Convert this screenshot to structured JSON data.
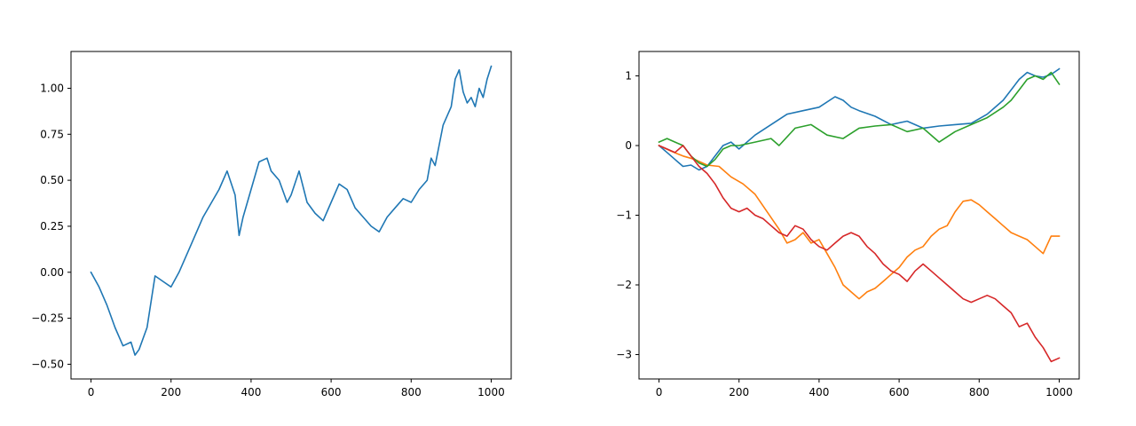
{
  "chart_data": [
    {
      "type": "line",
      "xlim": [
        -50,
        1050
      ],
      "ylim": [
        -0.58,
        1.2
      ],
      "xticks": [
        0,
        200,
        400,
        600,
        800,
        1000
      ],
      "xtick_labels": [
        "0",
        "200",
        "400",
        "600",
        "800",
        "1000"
      ],
      "yticks": [
        -0.5,
        -0.25,
        0.0,
        0.25,
        0.5,
        0.75,
        1.0
      ],
      "ytick_labels": [
        "−0.50",
        "−0.25",
        "0.00",
        "0.25",
        "0.50",
        "0.75",
        "1.00"
      ],
      "grid": false,
      "series": [
        {
          "color": "#1f77b4",
          "x": [
            0,
            20,
            40,
            60,
            80,
            100,
            110,
            120,
            140,
            160,
            180,
            200,
            220,
            250,
            280,
            320,
            340,
            360,
            370,
            380,
            400,
            420,
            440,
            450,
            470,
            490,
            500,
            520,
            540,
            560,
            580,
            600,
            620,
            640,
            660,
            680,
            700,
            720,
            740,
            760,
            780,
            800,
            820,
            840,
            850,
            860,
            880,
            900,
            910,
            920,
            930,
            940,
            950,
            960,
            970,
            980,
            990,
            1000
          ],
          "y": [
            0.0,
            -0.08,
            -0.18,
            -0.3,
            -0.4,
            -0.38,
            -0.45,
            -0.42,
            -0.3,
            -0.02,
            -0.05,
            -0.08,
            0.0,
            0.15,
            0.3,
            0.45,
            0.55,
            0.42,
            0.2,
            0.3,
            0.45,
            0.6,
            0.62,
            0.55,
            0.5,
            0.38,
            0.42,
            0.55,
            0.38,
            0.32,
            0.28,
            0.38,
            0.48,
            0.45,
            0.35,
            0.3,
            0.25,
            0.22,
            0.3,
            0.35,
            0.4,
            0.38,
            0.45,
            0.5,
            0.62,
            0.58,
            0.8,
            0.9,
            1.05,
            1.1,
            0.98,
            0.92,
            0.95,
            0.9,
            1.0,
            0.95,
            1.05,
            1.12
          ]
        }
      ]
    },
    {
      "type": "line",
      "xlim": [
        -50,
        1050
      ],
      "ylim": [
        -3.35,
        1.35
      ],
      "xticks": [
        0,
        200,
        400,
        600,
        800,
        1000
      ],
      "xtick_labels": [
        "0",
        "200",
        "400",
        "600",
        "800",
        "1000"
      ],
      "yticks": [
        -3,
        -2,
        -1,
        0,
        1
      ],
      "ytick_labels": [
        "−3",
        "−2",
        "−1",
        "0",
        "1"
      ],
      "grid": false,
      "series": [
        {
          "color": "#1f77b4",
          "x": [
            0,
            20,
            40,
            60,
            80,
            100,
            120,
            140,
            160,
            180,
            200,
            240,
            280,
            320,
            360,
            400,
            440,
            460,
            480,
            500,
            540,
            580,
            620,
            660,
            700,
            740,
            780,
            820,
            860,
            900,
            920,
            940,
            960,
            980,
            1000
          ],
          "y": [
            0.0,
            -0.1,
            -0.2,
            -0.3,
            -0.28,
            -0.35,
            -0.3,
            -0.15,
            0.0,
            0.05,
            -0.05,
            0.15,
            0.3,
            0.45,
            0.5,
            0.55,
            0.7,
            0.65,
            0.55,
            0.5,
            0.42,
            0.3,
            0.35,
            0.25,
            0.28,
            0.3,
            0.32,
            0.45,
            0.65,
            0.95,
            1.05,
            1.0,
            0.98,
            1.02,
            1.1
          ]
        },
        {
          "color": "#ff7f0e",
          "x": [
            0,
            30,
            60,
            90,
            120,
            150,
            180,
            210,
            240,
            270,
            300,
            320,
            340,
            360,
            380,
            400,
            420,
            440,
            460,
            480,
            500,
            520,
            540,
            560,
            580,
            600,
            620,
            640,
            660,
            680,
            700,
            720,
            740,
            760,
            780,
            800,
            820,
            840,
            860,
            880,
            900,
            920,
            940,
            960,
            980,
            1000
          ],
          "y": [
            0.0,
            -0.08,
            -0.15,
            -0.2,
            -0.28,
            -0.3,
            -0.45,
            -0.55,
            -0.7,
            -0.95,
            -1.2,
            -1.4,
            -1.35,
            -1.25,
            -1.4,
            -1.35,
            -1.55,
            -1.75,
            -2.0,
            -2.1,
            -2.2,
            -2.1,
            -2.05,
            -1.95,
            -1.85,
            -1.75,
            -1.6,
            -1.5,
            -1.45,
            -1.3,
            -1.2,
            -1.15,
            -0.95,
            -0.8,
            -0.78,
            -0.85,
            -0.95,
            -1.05,
            -1.15,
            -1.25,
            -1.3,
            -1.35,
            -1.45,
            -1.55,
            -1.3,
            -1.3
          ]
        },
        {
          "color": "#2ca02c",
          "x": [
            0,
            20,
            40,
            60,
            80,
            100,
            120,
            140,
            160,
            180,
            200,
            240,
            280,
            300,
            340,
            380,
            420,
            460,
            500,
            540,
            580,
            620,
            660,
            700,
            740,
            780,
            820,
            860,
            880,
            900,
            920,
            940,
            960,
            980,
            1000
          ],
          "y": [
            0.05,
            0.1,
            0.05,
            0.0,
            -0.15,
            -0.25,
            -0.3,
            -0.2,
            -0.05,
            0.0,
            0.0,
            0.05,
            0.1,
            0.0,
            0.25,
            0.3,
            0.15,
            0.1,
            0.25,
            0.28,
            0.3,
            0.2,
            0.25,
            0.05,
            0.2,
            0.3,
            0.4,
            0.55,
            0.65,
            0.8,
            0.95,
            1.0,
            0.95,
            1.05,
            0.88
          ]
        },
        {
          "color": "#d62728",
          "x": [
            0,
            20,
            40,
            60,
            80,
            100,
            120,
            140,
            160,
            180,
            200,
            220,
            240,
            260,
            280,
            300,
            320,
            340,
            360,
            380,
            400,
            420,
            440,
            460,
            480,
            500,
            520,
            540,
            560,
            580,
            600,
            620,
            640,
            660,
            680,
            700,
            720,
            740,
            760,
            780,
            800,
            820,
            840,
            860,
            880,
            900,
            920,
            940,
            960,
            980,
            1000
          ],
          "y": [
            0.0,
            -0.05,
            -0.1,
            0.0,
            -0.15,
            -0.3,
            -0.4,
            -0.55,
            -0.75,
            -0.9,
            -0.95,
            -0.9,
            -1.0,
            -1.05,
            -1.15,
            -1.25,
            -1.3,
            -1.15,
            -1.2,
            -1.35,
            -1.45,
            -1.5,
            -1.4,
            -1.3,
            -1.25,
            -1.3,
            -1.45,
            -1.55,
            -1.7,
            -1.8,
            -1.85,
            -1.95,
            -1.8,
            -1.7,
            -1.8,
            -1.9,
            -2.0,
            -2.1,
            -2.2,
            -2.25,
            -2.2,
            -2.15,
            -2.2,
            -2.3,
            -2.4,
            -2.6,
            -2.55,
            -2.75,
            -2.9,
            -3.1,
            -3.05
          ]
        }
      ]
    }
  ]
}
